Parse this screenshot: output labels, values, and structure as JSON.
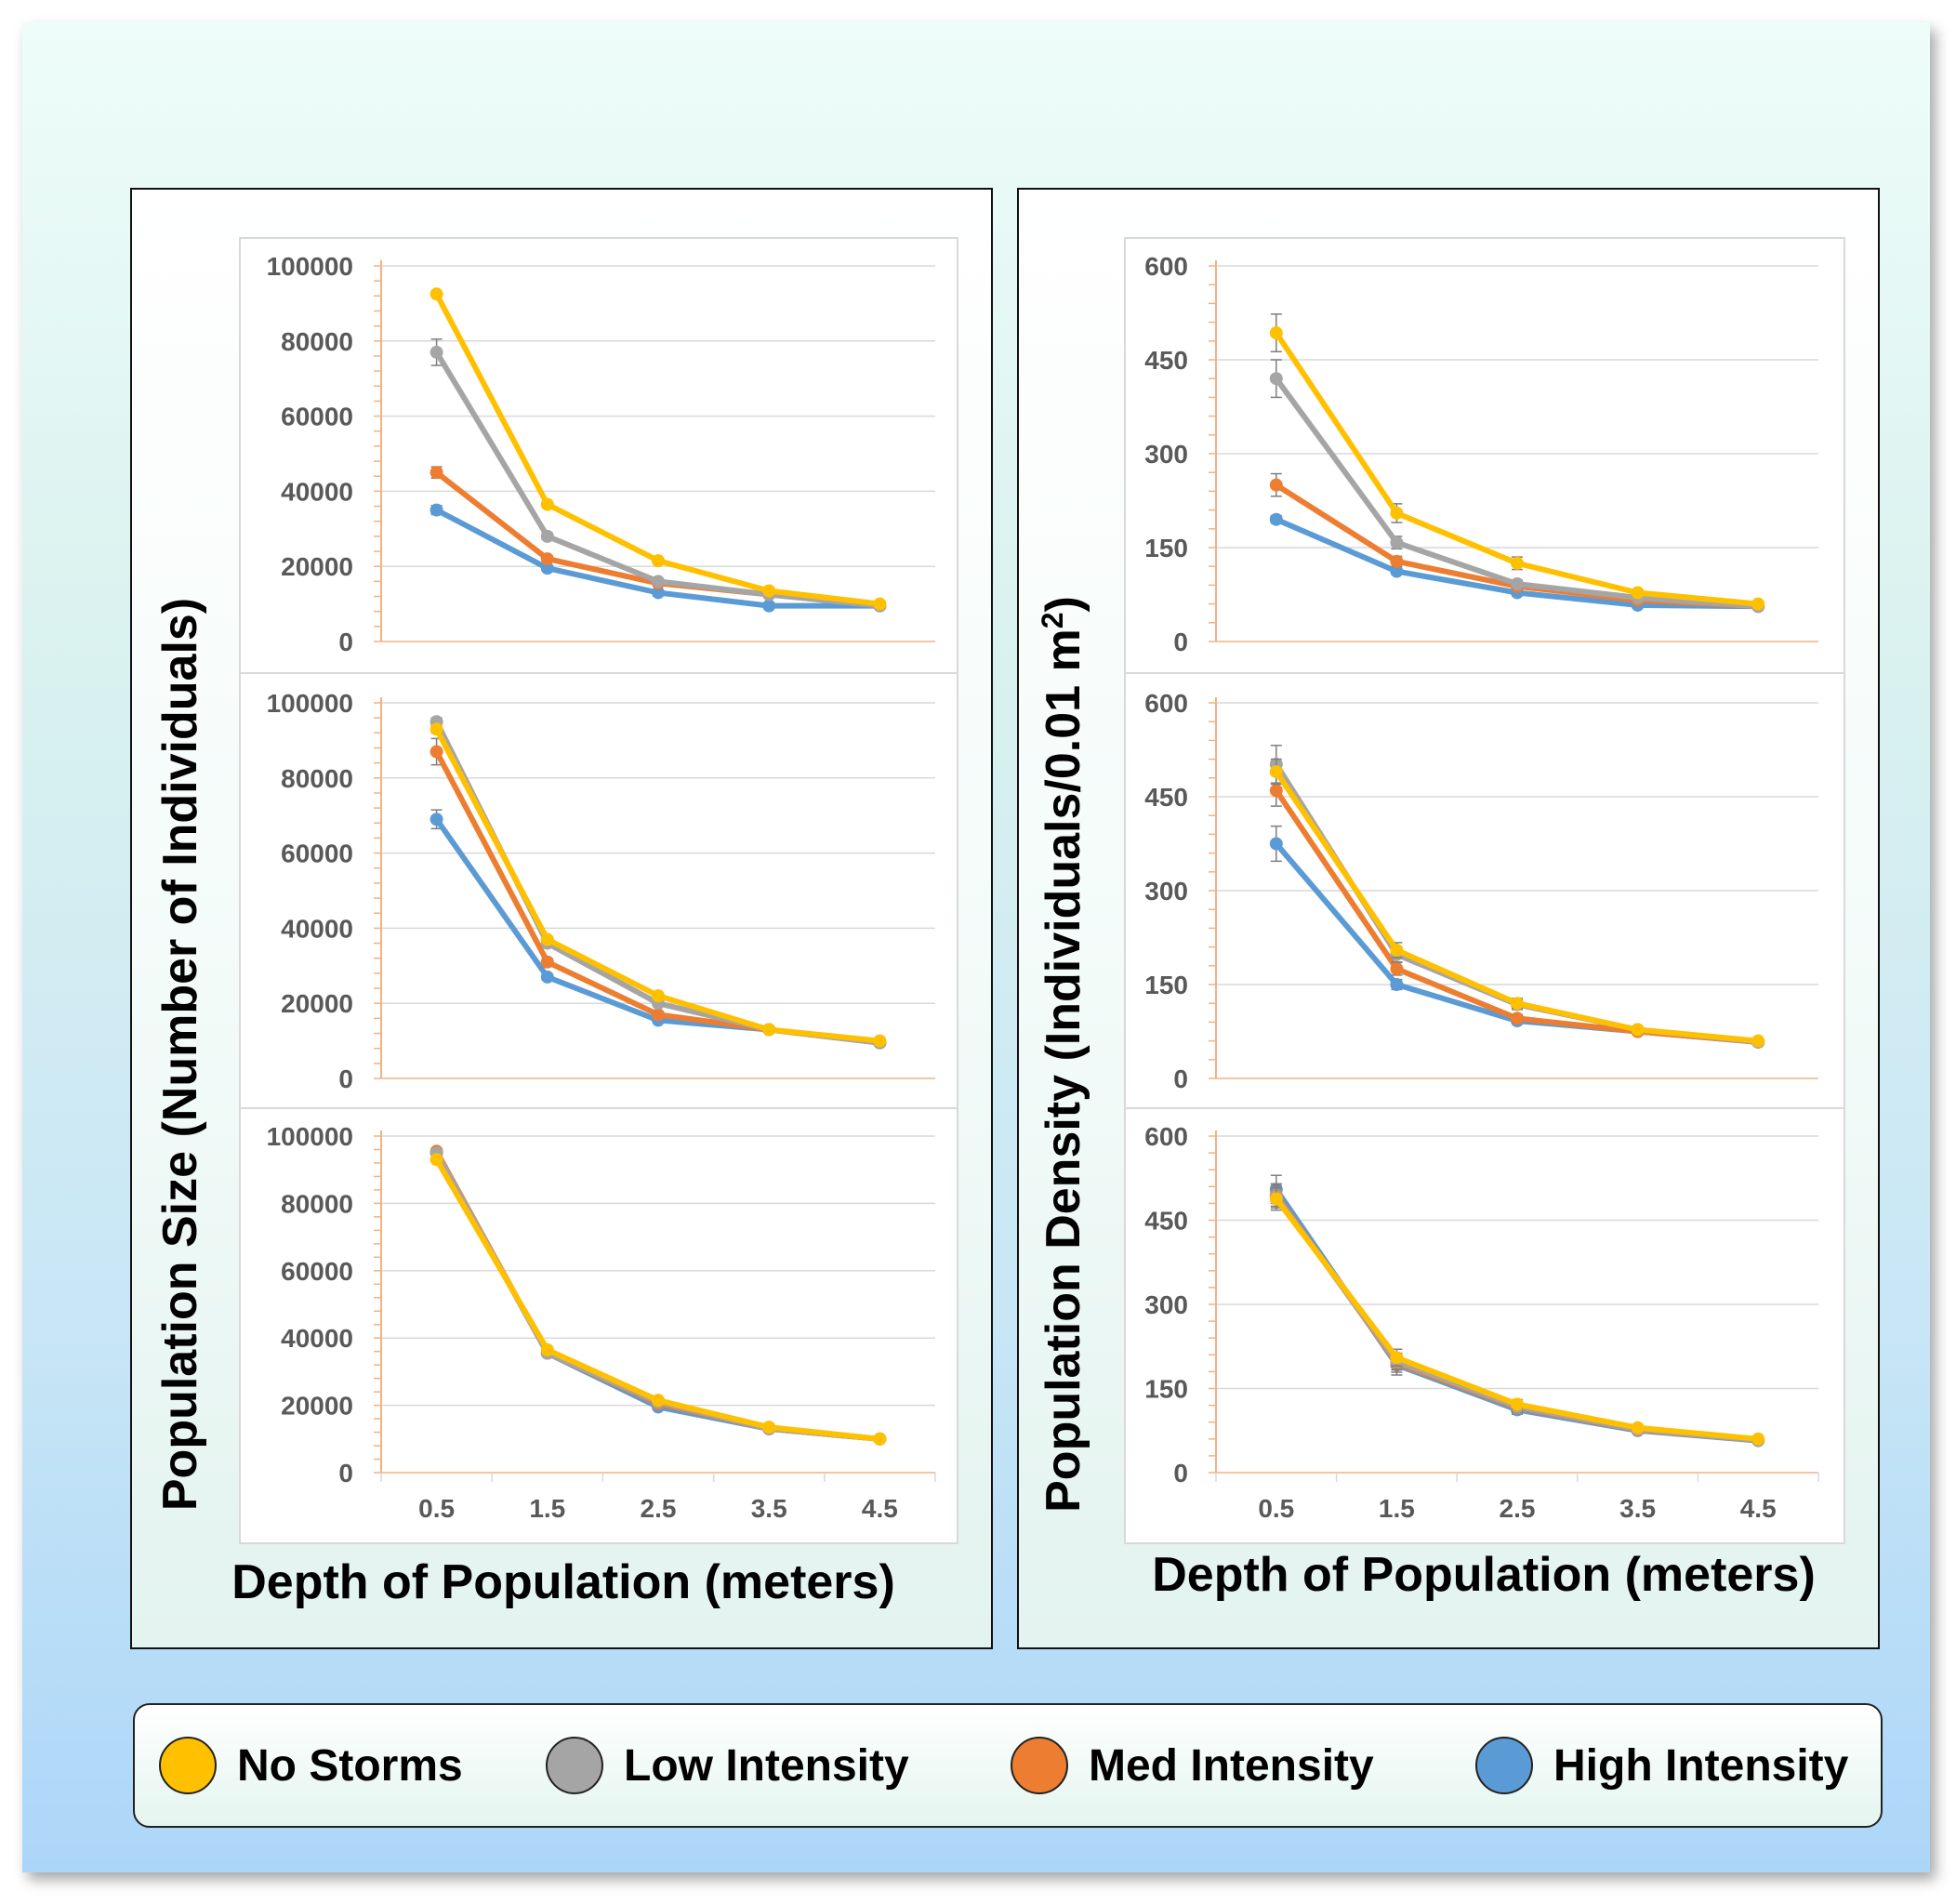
{
  "colors": {
    "no_storms": "#ffc000",
    "low_intensity": "#a5a5a5",
    "med_intensity": "#ed7d31",
    "high_intensity": "#5b9bd5",
    "axis": "#f4b183",
    "grid": "#d9d9d9",
    "tick_text": "#595959"
  },
  "legend": {
    "items": [
      {
        "label": "No Storms",
        "color": "#ffc000"
      },
      {
        "label": "Low Intensity",
        "color": "#a5a5a5"
      },
      {
        "label": "Med Intensity",
        "color": "#ed7d31"
      },
      {
        "label": "High Intensity",
        "color": "#5b9bd5"
      }
    ]
  },
  "panels": {
    "left": {
      "ylabel": "Population Size (Number of Individuals)",
      "xlabel": "Depth of Population (meters)"
    },
    "right": {
      "ylabel_main": "Population Density (Individuals/0.01 m",
      "ylabel_sup": "2",
      "ylabel_end": ")",
      "xlabel": "Depth of Population (meters)"
    }
  },
  "chart_data": [
    {
      "type": "line",
      "panel": "left",
      "row": 0,
      "x": [
        0.5,
        1.5,
        2.5,
        3.5,
        4.5
      ],
      "ylim": [
        0,
        100000
      ],
      "yticks": [
        0,
        20000,
        40000,
        60000,
        80000,
        100000
      ],
      "show_xticks": false,
      "series": [
        {
          "key": "high_intensity",
          "values": [
            35000,
            19500,
            13000,
            9500,
            9500
          ],
          "error": [
            1200,
            800,
            500,
            400,
            400
          ]
        },
        {
          "key": "med_intensity",
          "values": [
            45000,
            22000,
            15500,
            12500,
            9500
          ],
          "error": [
            1500,
            800,
            500,
            400,
            400
          ]
        },
        {
          "key": "low_intensity",
          "values": [
            77000,
            28000,
            16000,
            12500,
            9500
          ],
          "error": [
            3500,
            900,
            600,
            400,
            400
          ]
        },
        {
          "key": "no_storms",
          "values": [
            92500,
            36500,
            21500,
            13500,
            10000
          ],
          "error": [
            500,
            700,
            500,
            400,
            300
          ]
        }
      ]
    },
    {
      "type": "line",
      "panel": "left",
      "row": 1,
      "x": [
        0.5,
        1.5,
        2.5,
        3.5,
        4.5
      ],
      "ylim": [
        0,
        100000
      ],
      "yticks": [
        0,
        20000,
        40000,
        60000,
        80000,
        100000
      ],
      "show_xticks": false,
      "series": [
        {
          "key": "high_intensity",
          "values": [
            69000,
            27000,
            15500,
            13000,
            9500
          ],
          "error": [
            2500,
            800,
            500,
            400,
            400
          ]
        },
        {
          "key": "med_intensity",
          "values": [
            87000,
            31000,
            17000,
            13000,
            9500
          ],
          "error": [
            3500,
            900,
            600,
            400,
            400
          ]
        },
        {
          "key": "low_intensity",
          "values": [
            95000,
            36000,
            20000,
            13000,
            9500
          ],
          "error": [
            1000,
            800,
            600,
            400,
            400
          ]
        },
        {
          "key": "no_storms",
          "values": [
            93000,
            37000,
            22000,
            13000,
            10000
          ],
          "error": [
            1000,
            800,
            600,
            400,
            300
          ]
        }
      ]
    },
    {
      "type": "line",
      "panel": "left",
      "row": 2,
      "x": [
        0.5,
        1.5,
        2.5,
        3.5,
        4.5
      ],
      "ylim": [
        0,
        100000
      ],
      "yticks": [
        0,
        20000,
        40000,
        60000,
        80000,
        100000
      ],
      "show_xticks": true,
      "series": [
        {
          "key": "high_intensity",
          "values": [
            95000,
            35500,
            19500,
            13000,
            10000
          ],
          "error": [
            800,
            700,
            500,
            400,
            300
          ]
        },
        {
          "key": "med_intensity",
          "values": [
            95500,
            35500,
            20500,
            13000,
            10000
          ],
          "error": [
            800,
            700,
            500,
            400,
            300
          ]
        },
        {
          "key": "low_intensity",
          "values": [
            95000,
            35500,
            21000,
            13000,
            10000
          ],
          "error": [
            800,
            700,
            500,
            400,
            300
          ]
        },
        {
          "key": "no_storms",
          "values": [
            93000,
            36500,
            21500,
            13500,
            10000
          ],
          "error": [
            800,
            700,
            500,
            400,
            300
          ]
        }
      ]
    },
    {
      "type": "line",
      "panel": "right",
      "row": 0,
      "x": [
        0.5,
        1.5,
        2.5,
        3.5,
        4.5
      ],
      "ylim": [
        0,
        600
      ],
      "yticks": [
        0,
        150,
        300,
        450,
        600
      ],
      "show_xticks": false,
      "series": [
        {
          "key": "high_intensity",
          "values": [
            195,
            112,
            78,
            58,
            56
          ],
          "error": [
            6,
            5,
            4,
            3,
            3
          ]
        },
        {
          "key": "med_intensity",
          "values": [
            250,
            128,
            88,
            66,
            56
          ],
          "error": [
            18,
            8,
            5,
            4,
            3
          ]
        },
        {
          "key": "low_intensity",
          "values": [
            420,
            158,
            92,
            70,
            56
          ],
          "error": [
            30,
            10,
            6,
            4,
            3
          ]
        },
        {
          "key": "no_storms",
          "values": [
            493,
            205,
            125,
            78,
            60
          ],
          "error": [
            30,
            15,
            10,
            5,
            3
          ]
        }
      ]
    },
    {
      "type": "line",
      "panel": "right",
      "row": 1,
      "x": [
        0.5,
        1.5,
        2.5,
        3.5,
        4.5
      ],
      "ylim": [
        0,
        600
      ],
      "yticks": [
        0,
        150,
        300,
        450,
        600
      ],
      "show_xticks": false,
      "series": [
        {
          "key": "high_intensity",
          "values": [
            375,
            150,
            92,
            75,
            58
          ],
          "error": [
            28,
            8,
            5,
            4,
            3
          ]
        },
        {
          "key": "med_intensity",
          "values": [
            460,
            175,
            96,
            75,
            58
          ],
          "error": [
            25,
            10,
            6,
            4,
            3
          ]
        },
        {
          "key": "low_intensity",
          "values": [
            502,
            198,
            118,
            78,
            58
          ],
          "error": [
            30,
            12,
            8,
            4,
            3
          ]
        },
        {
          "key": "no_storms",
          "values": [
            490,
            205,
            120,
            78,
            60
          ],
          "error": [
            20,
            12,
            8,
            4,
            3
          ]
        }
      ]
    },
    {
      "type": "line",
      "panel": "right",
      "row": 2,
      "x": [
        0.5,
        1.5,
        2.5,
        3.5,
        4.5
      ],
      "ylim": [
        0,
        600
      ],
      "yticks": [
        0,
        150,
        300,
        450,
        600
      ],
      "show_xticks": true,
      "series": [
        {
          "key": "high_intensity",
          "values": [
            505,
            192,
            112,
            75,
            57
          ],
          "error": [
            25,
            18,
            8,
            4,
            3
          ]
        },
        {
          "key": "med_intensity",
          "values": [
            495,
            195,
            116,
            76,
            58
          ],
          "error": [
            20,
            16,
            8,
            4,
            3
          ]
        },
        {
          "key": "low_intensity",
          "values": [
            492,
            198,
            118,
            77,
            58
          ],
          "error": [
            20,
            15,
            8,
            4,
            3
          ]
        },
        {
          "key": "no_storms",
          "values": [
            488,
            205,
            122,
            80,
            60
          ],
          "error": [
            20,
            15,
            8,
            4,
            3
          ]
        }
      ]
    }
  ]
}
